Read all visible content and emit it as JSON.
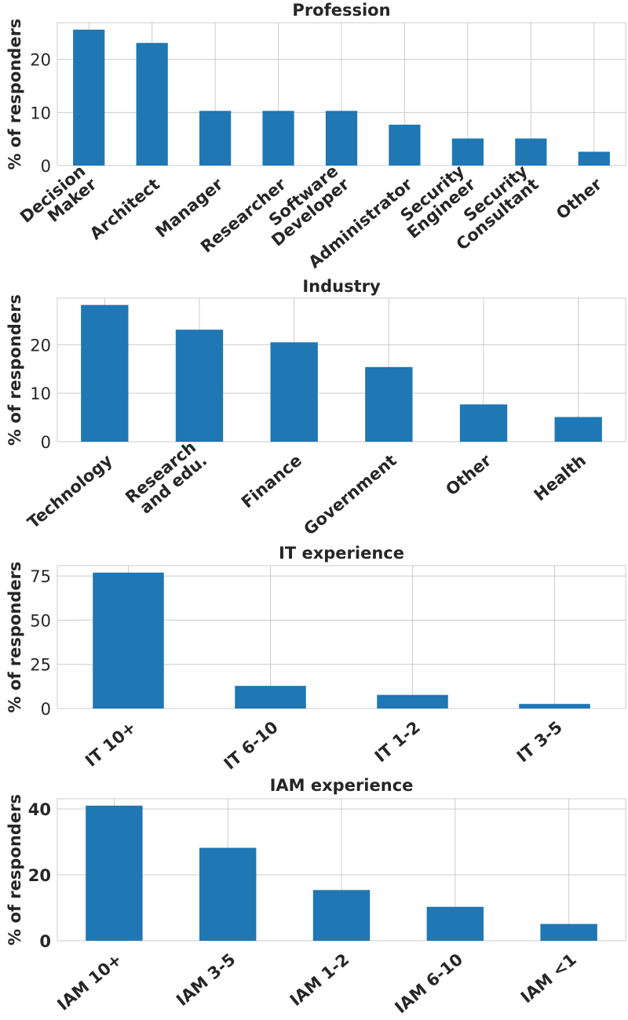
{
  "chart_data": [
    {
      "type": "bar",
      "title": "Profession",
      "ylabel": "% of responders",
      "xlabel": "",
      "categories": [
        "Decision Maker",
        "Architect",
        "Manager",
        "Researcher",
        "Software Developer",
        "Administrator",
        "Security Engineer",
        "Security Consultant",
        "Other"
      ],
      "category_lines": [
        [
          "Decision",
          "Maker"
        ],
        [
          "Architect"
        ],
        [
          "Manager"
        ],
        [
          "Researcher"
        ],
        [
          "Software",
          "Developer"
        ],
        [
          "Administrator"
        ],
        [
          "Security",
          "Engineer"
        ],
        [
          "Security",
          "Consultant"
        ],
        [
          "Other"
        ]
      ],
      "values": [
        25.6,
        23.1,
        10.3,
        10.3,
        10.3,
        7.7,
        5.1,
        5.1,
        2.6
      ],
      "yticks": [
        0,
        10,
        20
      ],
      "ylim": [
        0,
        26.9
      ],
      "grid": true
    },
    {
      "type": "bar",
      "title": "Industry",
      "ylabel": "% of responders",
      "xlabel": "",
      "categories": [
        "Technology",
        "Research and edu.",
        "Finance",
        "Government",
        "Other",
        "Health"
      ],
      "category_lines": [
        [
          "Technology"
        ],
        [
          "Research",
          "and edu."
        ],
        [
          "Finance"
        ],
        [
          "Government"
        ],
        [
          "Other"
        ],
        [
          "Health"
        ]
      ],
      "values": [
        28.2,
        23.1,
        20.5,
        15.4,
        7.7,
        5.1
      ],
      "yticks": [
        0,
        10,
        20
      ],
      "ylim": [
        0,
        29.6
      ],
      "grid": true
    },
    {
      "type": "bar",
      "title": "IT experience",
      "ylabel": "% of responders",
      "xlabel": "",
      "categories": [
        "IT 10+",
        "IT 6-10",
        "IT 1-2",
        "IT 3-5"
      ],
      "category_lines": [
        [
          "IT 10+"
        ],
        [
          "IT 6-10"
        ],
        [
          "IT 1-2"
        ],
        [
          "IT 3-5"
        ]
      ],
      "values": [
        76.9,
        12.8,
        7.7,
        2.6
      ],
      "yticks": [
        0,
        25,
        50,
        75
      ],
      "ylim": [
        0,
        80.8
      ],
      "grid": true
    },
    {
      "type": "bar",
      "title": "IAM experience",
      "ylabel": "% of responders",
      "xlabel": "",
      "categories": [
        "IAM 10+",
        "IAM 3-5",
        "IAM 1-2",
        "IAM 6-10",
        "IAM <1"
      ],
      "category_lines": [
        [
          "IAM 10+"
        ],
        [
          "IAM 3-5"
        ],
        [
          "IAM 1-2"
        ],
        [
          "IAM 6-10"
        ],
        [
          "IAM <1"
        ]
      ],
      "values": [
        41.0,
        28.2,
        15.4,
        10.3,
        5.1
      ],
      "yticks": [
        0,
        20,
        40
      ],
      "ylim": [
        0,
        43.1
      ],
      "grid": true,
      "bold_yticks": true
    }
  ],
  "colors": {
    "bar": "#1f77b4",
    "grid": "#cccccc",
    "text": "#262626"
  }
}
